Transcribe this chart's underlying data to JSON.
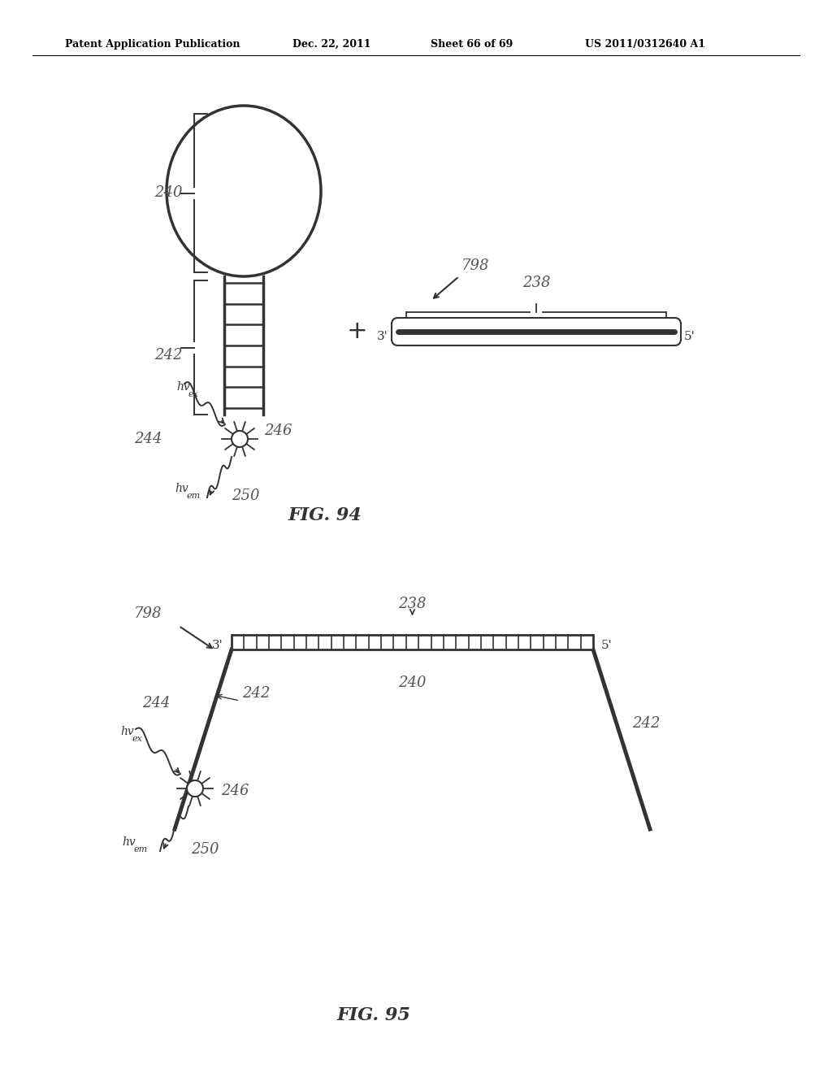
{
  "bg_color": "#ffffff",
  "header_text": "Patent Application Publication",
  "header_date": "Dec. 22, 2011",
  "header_sheet": "Sheet 66 of 69",
  "header_patent": "US 2011/0312640 A1",
  "fig94_label": "FIG. 94",
  "fig95_label": "FIG. 95",
  "label_color": "#555555",
  "line_color": "#333333"
}
